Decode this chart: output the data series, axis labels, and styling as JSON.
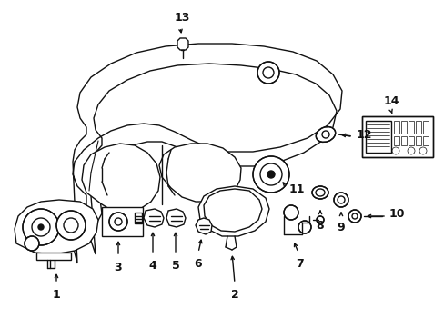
{
  "bg_color": "#ffffff",
  "line_color": "#111111",
  "figsize": [
    4.89,
    3.6
  ],
  "dpi": 100
}
